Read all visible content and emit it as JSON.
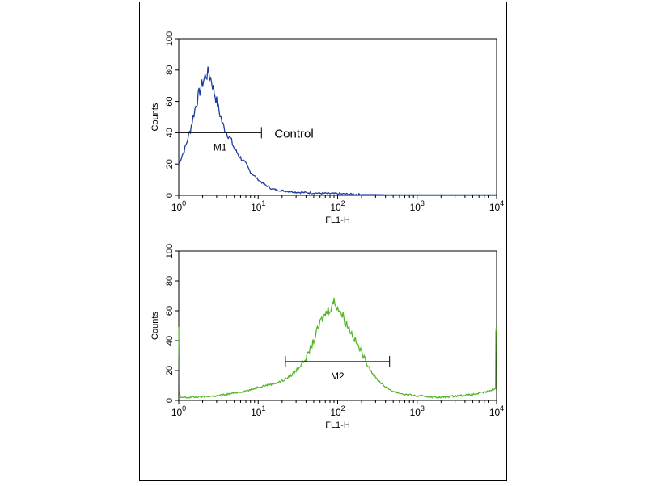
{
  "colors": {
    "control": "#1f3d9c",
    "sample": "#55b52a",
    "axis": "#000000"
  },
  "chart_data": [
    {
      "type": "line",
      "title": "",
      "xlabel": "FL1-H",
      "ylabel": "Counts",
      "xscale": "log",
      "xlim": [
        1,
        10000
      ],
      "ylim": [
        0,
        100
      ],
      "yticks": [
        "0",
        "20",
        "40",
        "60",
        "80",
        "100"
      ],
      "xticks": [
        {
          "base": "10",
          "exp": "0"
        },
        {
          "base": "10",
          "exp": "1"
        },
        {
          "base": "10",
          "exp": "2"
        },
        {
          "base": "10",
          "exp": "3"
        },
        {
          "base": "10",
          "exp": "4"
        }
      ],
      "grid": false,
      "series": [
        {
          "color": "#1f3d9c",
          "x": [
            1,
            1.2,
            1.4,
            1.6,
            1.8,
            2.0,
            2.2,
            2.4,
            2.6,
            2.8,
            3.0,
            3.3,
            3.6,
            4.0,
            4.5,
            5.0,
            6.0,
            7.0,
            8.0,
            10,
            12,
            15,
            20,
            30,
            50,
            100,
            200,
            300,
            400,
            10000
          ],
          "y": [
            20,
            30,
            42,
            55,
            65,
            72,
            77,
            78,
            73,
            66,
            60,
            52,
            45,
            40,
            36,
            30,
            24,
            20,
            15,
            10,
            7,
            4,
            3,
            2,
            1.5,
            1,
            0.5,
            0.5,
            0.3,
            0.3
          ]
        }
      ],
      "markers": [
        {
          "label": "M1",
          "from": 1,
          "to": 11
        }
      ],
      "annotation": "Control"
    },
    {
      "type": "line",
      "title": "",
      "xlabel": "FL1-H",
      "ylabel": "Counts",
      "xscale": "log",
      "xlim": [
        1,
        10000
      ],
      "ylim": [
        0,
        100
      ],
      "yticks": [
        "0",
        "20",
        "40",
        "60",
        "80",
        "100"
      ],
      "xticks": [
        {
          "base": "10",
          "exp": "0"
        },
        {
          "base": "10",
          "exp": "1"
        },
        {
          "base": "10",
          "exp": "2"
        },
        {
          "base": "10",
          "exp": "3"
        },
        {
          "base": "10",
          "exp": "4"
        }
      ],
      "grid": false,
      "series": [
        {
          "color": "#55b52a",
          "x": [
            1,
            1.02,
            1.05,
            1.3,
            2,
            3,
            5,
            8,
            10,
            15,
            20,
            25,
            30,
            40,
            50,
            60,
            70,
            80,
            90,
            100,
            120,
            150,
            200,
            250,
            300,
            400,
            500,
            700,
            1000,
            2000,
            3000,
            5000,
            8000,
            9700,
            9800,
            10000
          ],
          "y": [
            48,
            5,
            2,
            2,
            2.5,
            3,
            5,
            7,
            9,
            11,
            13,
            16,
            20,
            28,
            40,
            52,
            58,
            62,
            66,
            63,
            55,
            45,
            32,
            22,
            15,
            9,
            6,
            4,
            3,
            2,
            3,
            4,
            6,
            8,
            48,
            48
          ]
        }
      ],
      "markers": [
        {
          "label": "M2",
          "from": 22,
          "to": 450
        }
      ],
      "annotation": ""
    }
  ]
}
